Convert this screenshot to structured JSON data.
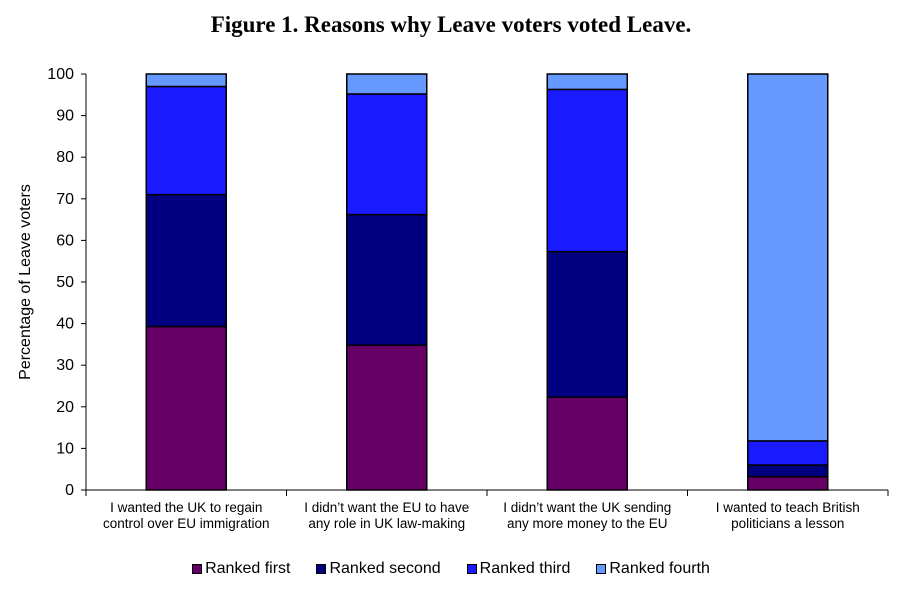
{
  "title": {
    "prefix": "Figure 1.",
    "text": "Reasons why Leave voters voted Leave."
  },
  "chart_data": {
    "type": "bar",
    "stacked": true,
    "categories": [
      [
        "I wanted the UK to regain",
        "control over EU immigration"
      ],
      [
        "I didn’t want the EU to have",
        "any role in UK law-making"
      ],
      [
        "I didn’t want the UK sending",
        "any more money to the EU"
      ],
      [
        "I wanted to teach British",
        "politicians a lesson"
      ]
    ],
    "series": [
      {
        "name": "Ranked first",
        "color": "#660066",
        "values": [
          39.3,
          34.8,
          22.3,
          3.2
        ]
      },
      {
        "name": "Ranked second",
        "color": "#000080",
        "values": [
          31.7,
          31.4,
          35.0,
          2.8
        ]
      },
      {
        "name": "Ranked third",
        "color": "#1a1aff",
        "values": [
          26.0,
          29.0,
          39.0,
          5.8
        ]
      },
      {
        "name": "Ranked fourth",
        "color": "#6699ff",
        "values": [
          3.0,
          4.8,
          3.7,
          88.2
        ]
      }
    ],
    "ylabel": "Percentage of Leave voters",
    "xlabel": "",
    "ylim": [
      0,
      100
    ],
    "yticks": [
      0,
      10,
      20,
      30,
      40,
      50,
      60,
      70,
      80,
      90,
      100
    ],
    "grid": false,
    "legend": "bottom"
  }
}
